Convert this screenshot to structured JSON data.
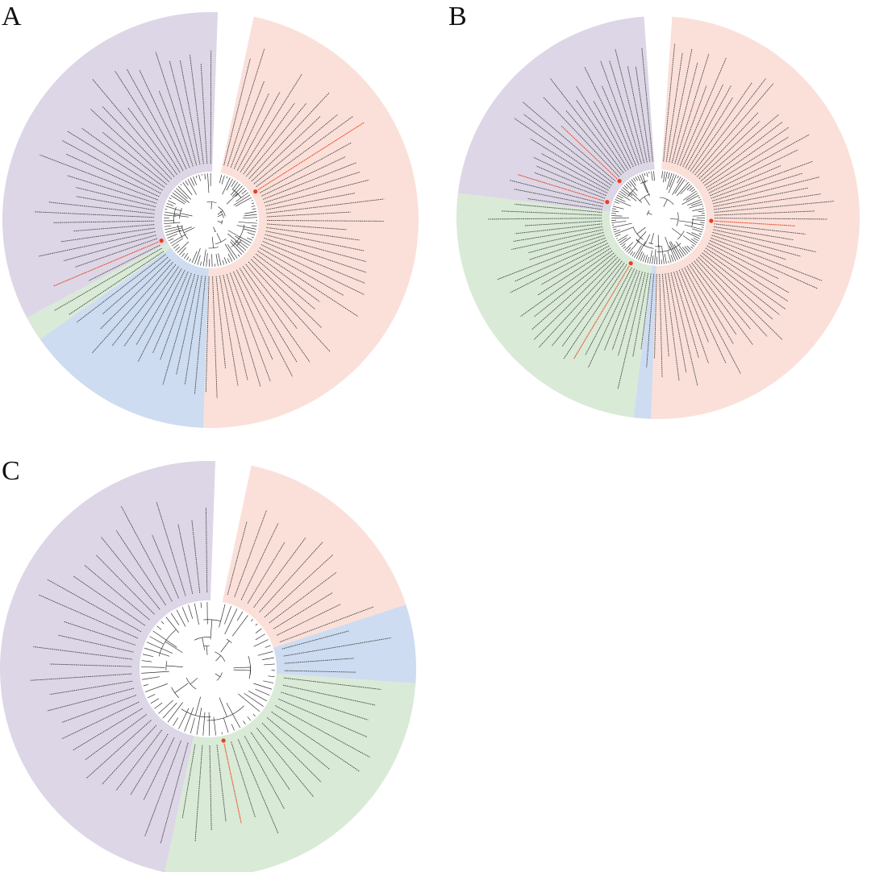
{
  "figure": {
    "panels": [
      {
        "label": "A",
        "sectors": [
          {
            "clade": "pink",
            "start": 0,
            "end": 170
          },
          {
            "clade": "blue",
            "start": 170,
            "end": 223
          },
          {
            "clade": "green",
            "start": 223,
            "end": 230
          },
          {
            "clade": "purple",
            "start": 230,
            "end": 350
          }
        ],
        "gap": [
          350,
          360
        ],
        "leaf_count": 96,
        "highlighted_leaves": [
          64,
          12
        ]
      },
      {
        "label": "B",
        "sectors": [
          {
            "clade": "pink",
            "start": 0,
            "end": 178
          },
          {
            "clade": "blue",
            "start": 178,
            "end": 183
          },
          {
            "clade": "green",
            "start": 183,
            "end": 273
          },
          {
            "clade": "purple",
            "start": 273,
            "end": 352
          }
        ],
        "gap": [
          352,
          360
        ],
        "leaf_count": 120,
        "highlighted_leaves": [
          30,
          70,
          96,
          105
        ]
      },
      {
        "label": "C",
        "sectors": [
          {
            "clade": "pink",
            "start": 0,
            "end": 60
          },
          {
            "clade": "blue",
            "start": 60,
            "end": 82
          },
          {
            "clade": "green",
            "start": 82,
            "end": 180
          },
          {
            "clade": "purple",
            "start": 180,
            "end": 350
          }
        ],
        "gap": [
          350,
          360
        ],
        "leaf_count": 64,
        "highlighted_leaves": [
          28
        ]
      }
    ],
    "colors": {
      "pink": "#fbe0da",
      "blue": "#cddcf0",
      "green": "#d9ead7",
      "purple": "#ddd6e6",
      "leaf_line": "#444444",
      "highlight": "#e8401c",
      "branch": "#333333"
    }
  }
}
